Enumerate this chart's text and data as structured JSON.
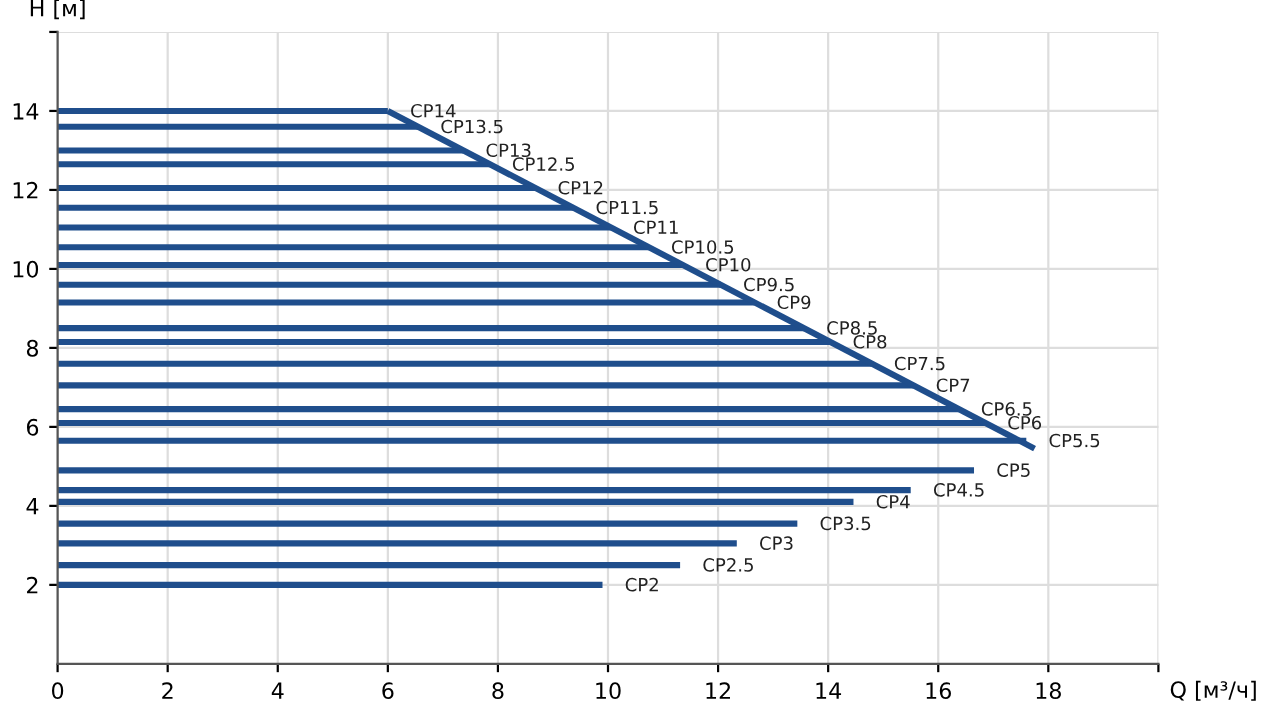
{
  "chart_data": {
    "type": "line",
    "xlabel": "Q [м³/ч]",
    "ylabel": "H [м]",
    "xlim": [
      0,
      20
    ],
    "xticks": [
      0,
      2,
      4,
      6,
      8,
      10,
      12,
      14,
      16,
      18,
      {
        "value": 20,
        "label": null
      }
    ],
    "ylim": [
      0,
      16
    ],
    "yticks": [
      2,
      4,
      6,
      8,
      10,
      12,
      14,
      {
        "value": 16,
        "label": null
      }
    ],
    "grid": true,
    "marker": "none",
    "line_style": "solid",
    "series": [
      {
        "name": "CP14",
        "color": "#1f4e8c",
        "x": [
          0,
          6.0
        ],
        "values": [
          14,
          14
        ]
      },
      {
        "name": "CP13.5",
        "color": "#1f4e8c",
        "x": [
          0,
          6.55
        ],
        "values": [
          13.6,
          13.6
        ]
      },
      {
        "name": "CP13",
        "color": "#1f4e8c",
        "x": [
          0,
          7.37
        ],
        "values": [
          13.0,
          13.0
        ]
      },
      {
        "name": "CP12.5",
        "color": "#1f4e8c",
        "x": [
          0,
          7.85
        ],
        "values": [
          12.65,
          12.65
        ]
      },
      {
        "name": "CP12",
        "color": "#1f4e8c",
        "x": [
          0,
          8.68
        ],
        "values": [
          12.05,
          12.05
        ]
      },
      {
        "name": "CP11.5",
        "color": "#1f4e8c",
        "x": [
          0,
          9.37
        ],
        "values": [
          11.55,
          11.55
        ]
      },
      {
        "name": "CP11",
        "color": "#1f4e8c",
        "x": [
          0,
          10.05
        ],
        "values": [
          11.05,
          11.05
        ]
      },
      {
        "name": "CP10.5",
        "color": "#1f4e8c",
        "x": [
          0,
          10.74
        ],
        "values": [
          10.55,
          10.55
        ]
      },
      {
        "name": "CP10",
        "color": "#1f4e8c",
        "x": [
          0,
          11.36
        ],
        "values": [
          10.1,
          10.1
        ]
      },
      {
        "name": "CP9.5",
        "color": "#1f4e8c",
        "x": [
          0,
          12.05
        ],
        "values": [
          9.6,
          9.6
        ]
      },
      {
        "name": "CP9",
        "color": "#1f4e8c",
        "x": [
          0,
          12.66
        ],
        "values": [
          9.15,
          9.15
        ]
      },
      {
        "name": "CP8.5",
        "color": "#1f4e8c",
        "x": [
          0,
          13.56
        ],
        "values": [
          8.5,
          8.5
        ]
      },
      {
        "name": "CP8",
        "color": "#1f4e8c",
        "x": [
          0,
          14.04
        ],
        "values": [
          8.15,
          8.15
        ]
      },
      {
        "name": "CP7.5",
        "color": "#1f4e8c",
        "x": [
          0,
          14.79
        ],
        "values": [
          7.6,
          7.6
        ]
      },
      {
        "name": "CP7",
        "color": "#1f4e8c",
        "x": [
          0,
          15.55
        ],
        "values": [
          7.05,
          7.05
        ]
      },
      {
        "name": "CP6.5",
        "color": "#1f4e8c",
        "x": [
          0,
          16.37
        ],
        "values": [
          6.45,
          6.45
        ]
      },
      {
        "name": "CP6",
        "color": "#1f4e8c",
        "x": [
          0,
          16.85
        ],
        "values": [
          6.1,
          6.1
        ]
      },
      {
        "name": "CP5.5",
        "color": "#1f4e8c",
        "x": [
          0,
          17.6
        ],
        "values": [
          5.65,
          5.65
        ]
      },
      {
        "name": "CP5",
        "color": "#1f4e8c",
        "x": [
          0,
          16.65
        ],
        "values": [
          4.9,
          4.9
        ]
      },
      {
        "name": "CP4.5",
        "color": "#1f4e8c",
        "x": [
          0,
          15.5
        ],
        "values": [
          4.4,
          4.4
        ]
      },
      {
        "name": "CP4",
        "color": "#1f4e8c",
        "x": [
          0,
          14.46
        ],
        "values": [
          4.1,
          4.1
        ]
      },
      {
        "name": "CP3.5",
        "color": "#1f4e8c",
        "x": [
          0,
          13.44
        ],
        "values": [
          3.55,
          3.55
        ]
      },
      {
        "name": "CP3",
        "color": "#1f4e8c",
        "x": [
          0,
          12.34
        ],
        "values": [
          3.05,
          3.05
        ]
      },
      {
        "name": "CP2.5",
        "color": "#1f4e8c",
        "x": [
          0,
          11.31
        ],
        "values": [
          2.5,
          2.5
        ]
      },
      {
        "name": "CP2",
        "color": "#1f4e8c",
        "x": [
          0,
          9.9
        ],
        "values": [
          2.0,
          2.0
        ]
      },
      {
        "color": "#1f4e8c",
        "x": [
          6.0,
          17.75
        ],
        "values": [
          14,
          5.45
        ]
      }
    ]
  }
}
